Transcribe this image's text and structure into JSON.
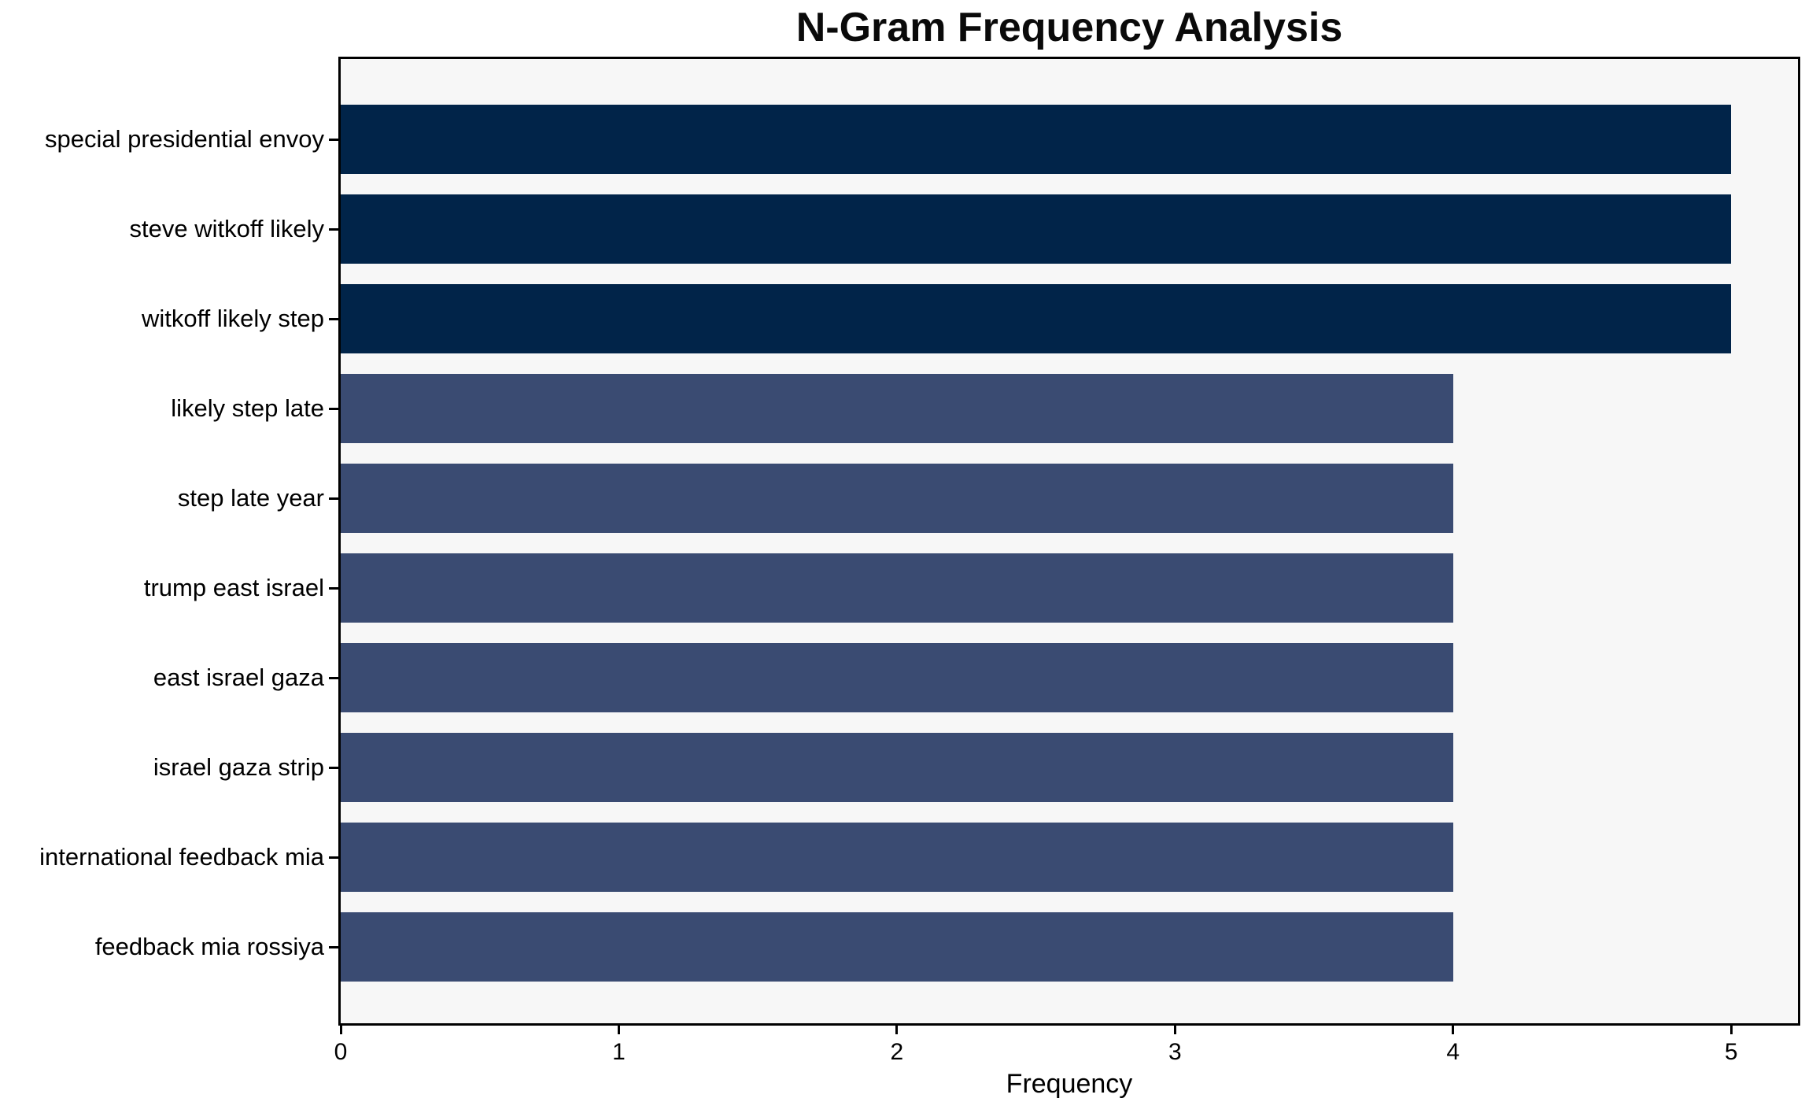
{
  "page": {
    "background_color": "#ffffff"
  },
  "chart_data": {
    "type": "bar",
    "orientation": "horizontal",
    "title": "N-Gram Frequency Analysis",
    "xlabel": "Frequency",
    "ylabel": "",
    "categories": [
      "special presidential envoy",
      "steve witkoff likely",
      "witkoff likely step",
      "likely step late",
      "step late year",
      "trump east israel",
      "east israel gaza",
      "israel gaza strip",
      "international feedback mia",
      "feedback mia rossiya"
    ],
    "values": [
      5,
      5,
      5,
      4,
      4,
      4,
      4,
      4,
      4,
      4
    ],
    "bar_colors": [
      "#012449",
      "#012449",
      "#012449",
      "#3a4b72",
      "#3a4b72",
      "#3a4b72",
      "#3a4b72",
      "#3a4b72",
      "#3a4b72",
      "#3a4b72"
    ],
    "xlim": [
      0,
      5.24
    ],
    "xticks": [
      0,
      1,
      2,
      3,
      4,
      5
    ],
    "grid": false,
    "legend": null,
    "colors": {
      "highlight_bar": "#012449",
      "normal_bar": "#3a4b72",
      "plot_background": "#f7f7f7",
      "spine": "#000000",
      "text": "#000000"
    }
  }
}
